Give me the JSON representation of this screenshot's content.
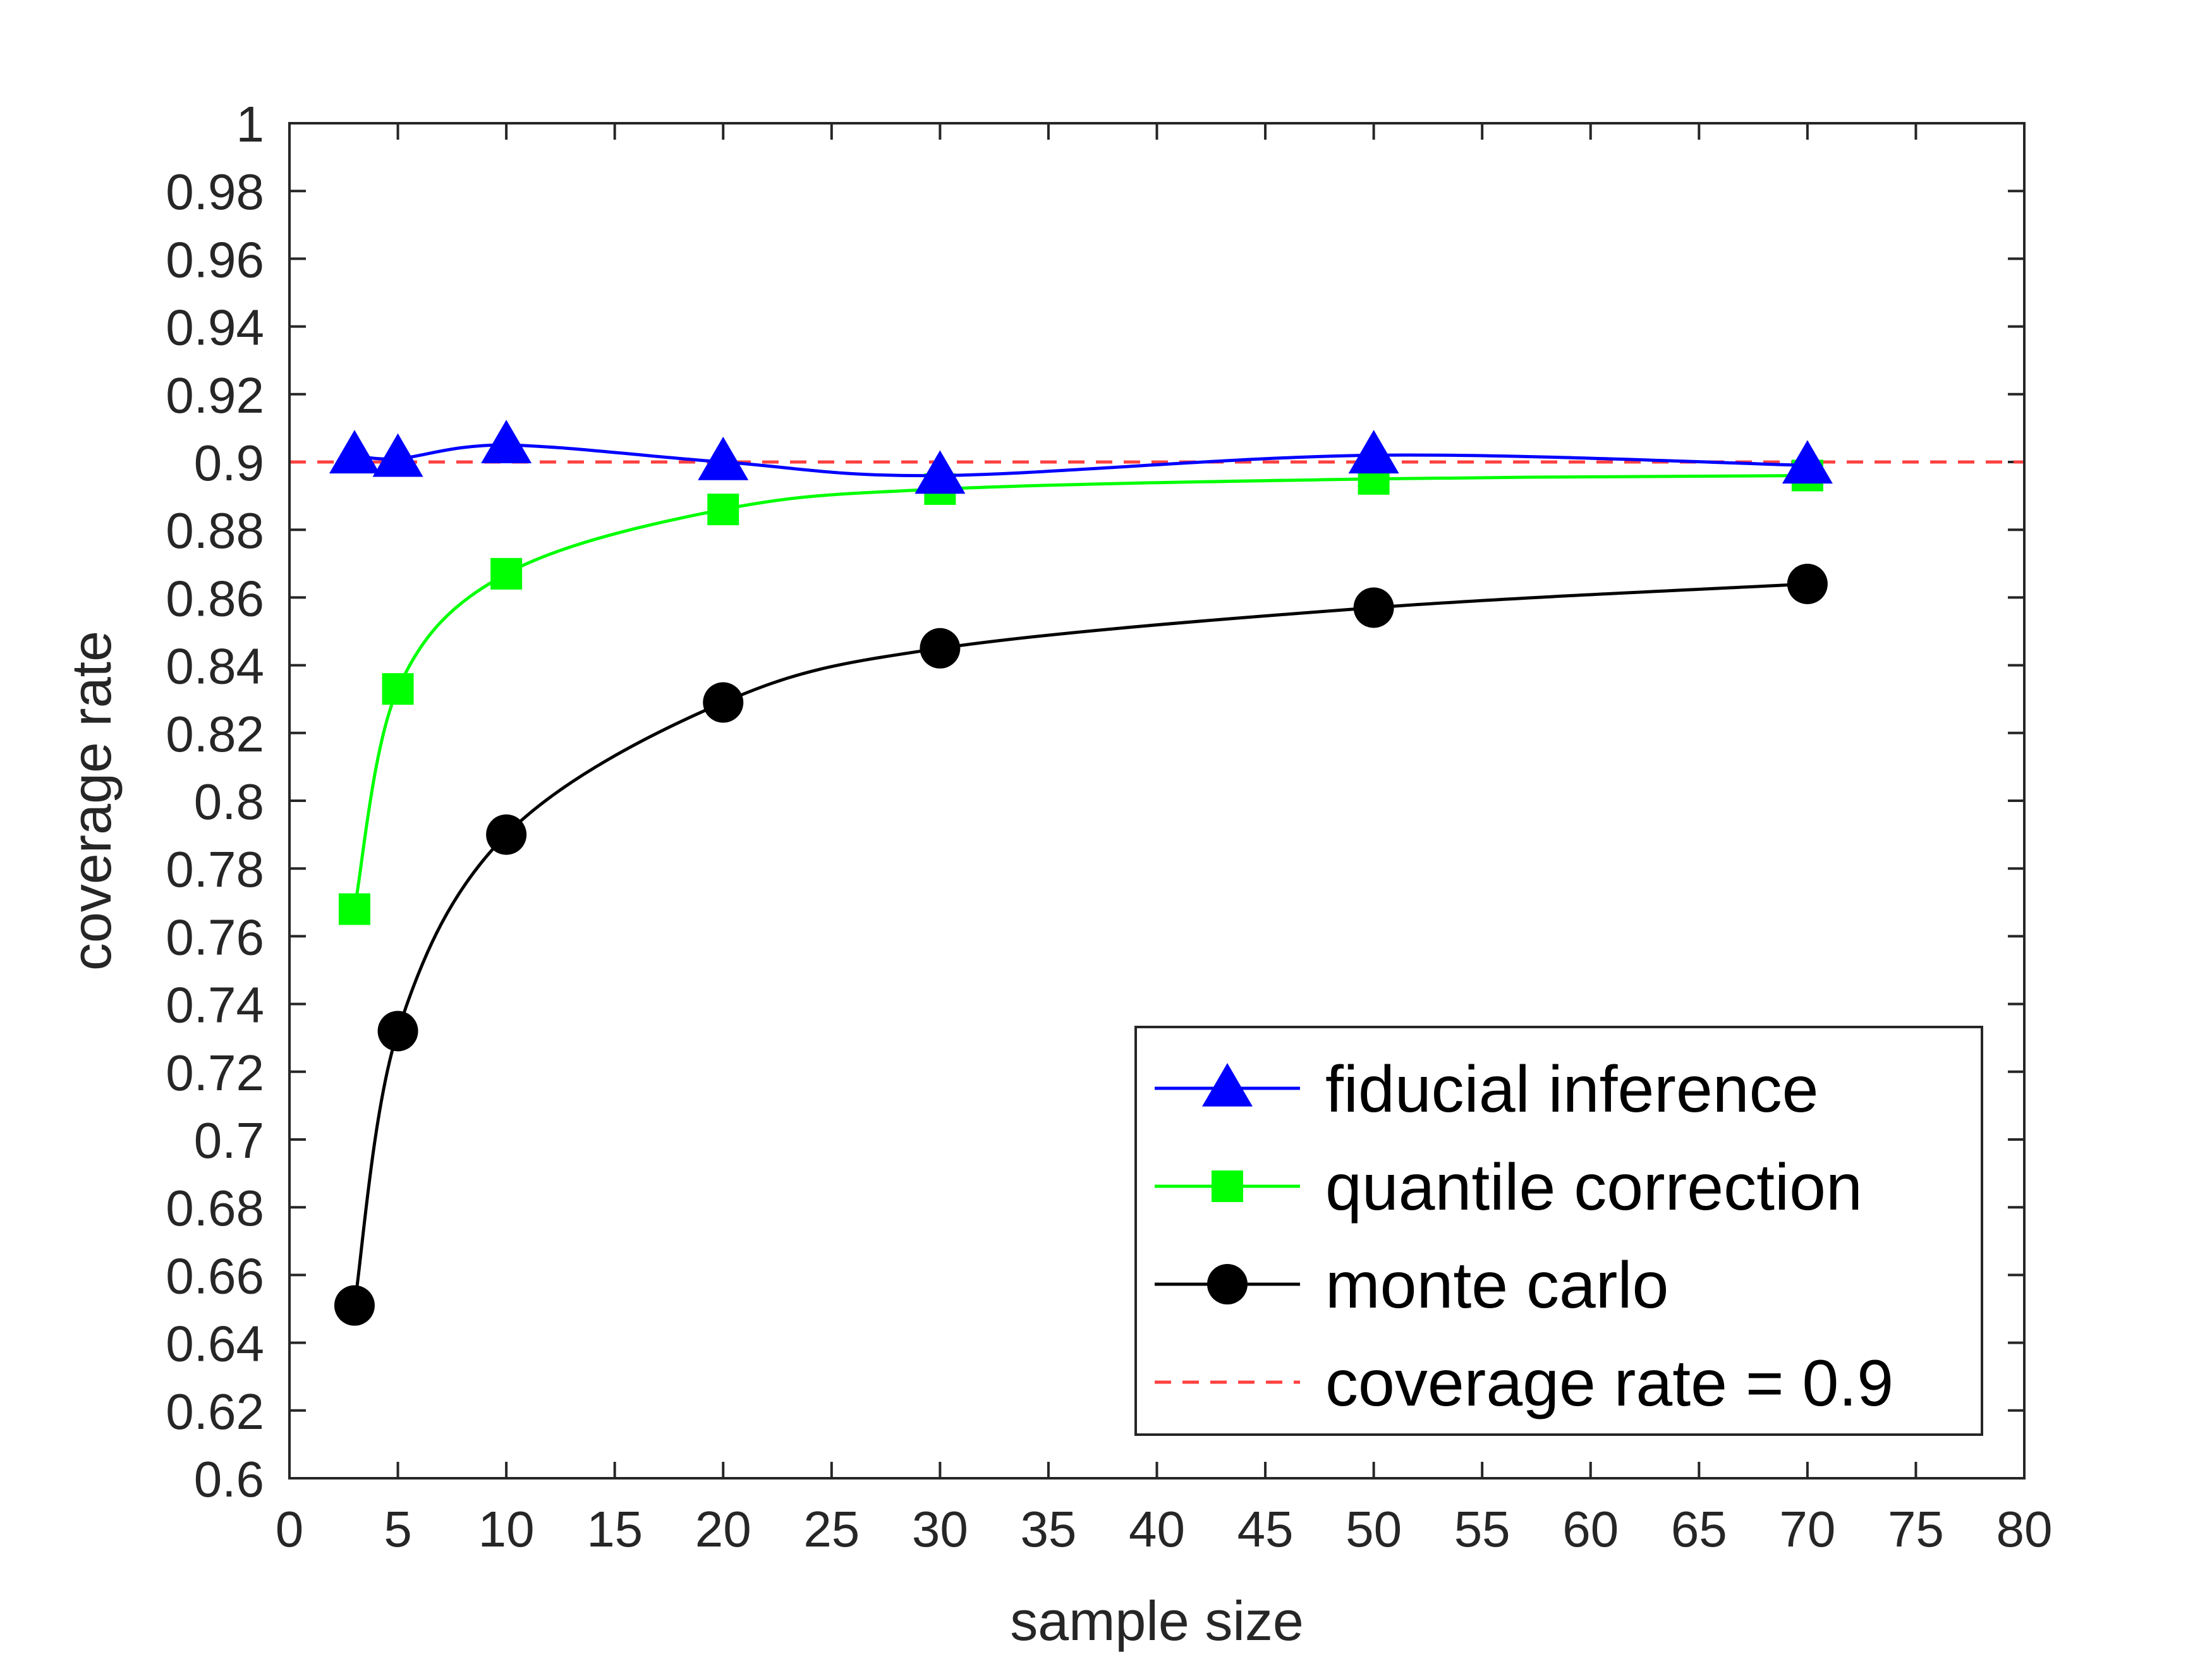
{
  "chart_data": {
    "type": "line",
    "xlabel": "sample size",
    "ylabel": "coverage rate",
    "xlim": [
      0,
      80
    ],
    "ylim": [
      0.6,
      1
    ],
    "xticks": [
      0,
      5,
      10,
      15,
      20,
      25,
      30,
      35,
      40,
      45,
      50,
      55,
      60,
      65,
      70,
      75,
      80
    ],
    "yticks": [
      0.6,
      0.62,
      0.64,
      0.66,
      0.68,
      0.7,
      0.72,
      0.74,
      0.76,
      0.78,
      0.8,
      0.82,
      0.84,
      0.86,
      0.88,
      0.9,
      0.92,
      0.94,
      0.96,
      0.98,
      1
    ],
    "ytick_labels": [
      "0.6",
      "0.62",
      "0.64",
      "0.66",
      "0.68",
      "0.7",
      "0.72",
      "0.74",
      "0.76",
      "0.78",
      "0.8",
      "0.82",
      "0.84",
      "0.86",
      "0.88",
      "0.9",
      "0.92",
      "0.94",
      "0.96",
      "0.98",
      "1"
    ],
    "grid": false,
    "legend_position": "bottom-right",
    "x": [
      3,
      5,
      10,
      20,
      30,
      50,
      70
    ],
    "series": [
      {
        "name": "fiducial inference",
        "values": [
          0.902,
          0.901,
          0.905,
          0.9,
          0.896,
          0.902,
          0.899
        ],
        "color": "#0000ff",
        "marker": "triangle",
        "style": "solid"
      },
      {
        "name": "quantile correction",
        "values": [
          0.768,
          0.833,
          0.867,
          0.886,
          0.892,
          0.895,
          0.896
        ],
        "color": "#00ff00",
        "marker": "square",
        "style": "solid"
      },
      {
        "name": "monte carlo",
        "values": [
          0.651,
          0.732,
          0.79,
          0.829,
          0.845,
          0.857,
          0.864
        ],
        "color": "#000000",
        "marker": "circle",
        "style": "solid"
      },
      {
        "name": "coverage rate = 0.9",
        "reference_y": 0.9,
        "color": "#ff4040",
        "marker": "none",
        "style": "dashed"
      }
    ]
  }
}
